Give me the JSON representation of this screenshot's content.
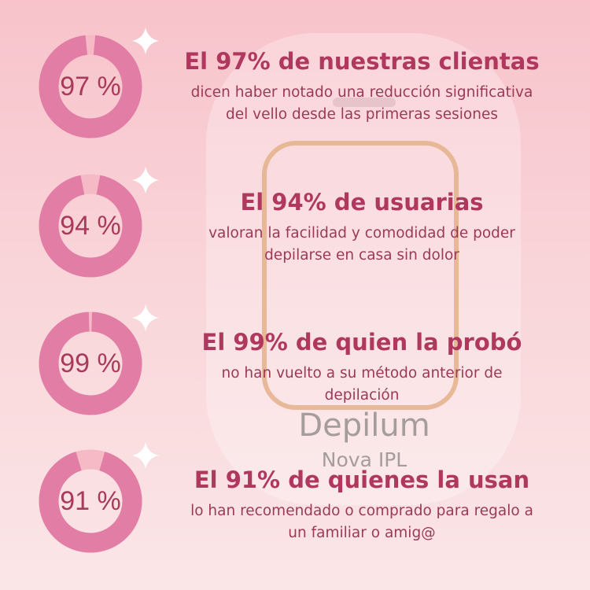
{
  "items": [
    {
      "value": 97,
      "value_label": "97 %",
      "headline": "El 97% de nuestras clientas",
      "text": [
        "dicen haber notado una reducción significativa",
        "del vello desde las primeras sesiones"
      ]
    },
    {
      "value": 94,
      "value_label": "94 %",
      "headline": "El 94% de usuarias",
      "text": [
        "valoran la facilidad y comodidad de poder",
        "depilarse en casa sin dolor"
      ]
    },
    {
      "value": 99,
      "value_label": "99 %",
      "headline": "El 99% de quien la probó",
      "text": [
        "no han vuelto a su método anterior de",
        "depilación"
      ]
    },
    {
      "value": 91,
      "value_label": "91 %",
      "headline": "El 91% de quienes la usan",
      "text": [
        "lo han recomendado o comprado para regalo a",
        "un familiar o amig@"
      ]
    }
  ],
  "product": {
    "name": "Depilum",
    "model": "Nova IPL"
  }
}
